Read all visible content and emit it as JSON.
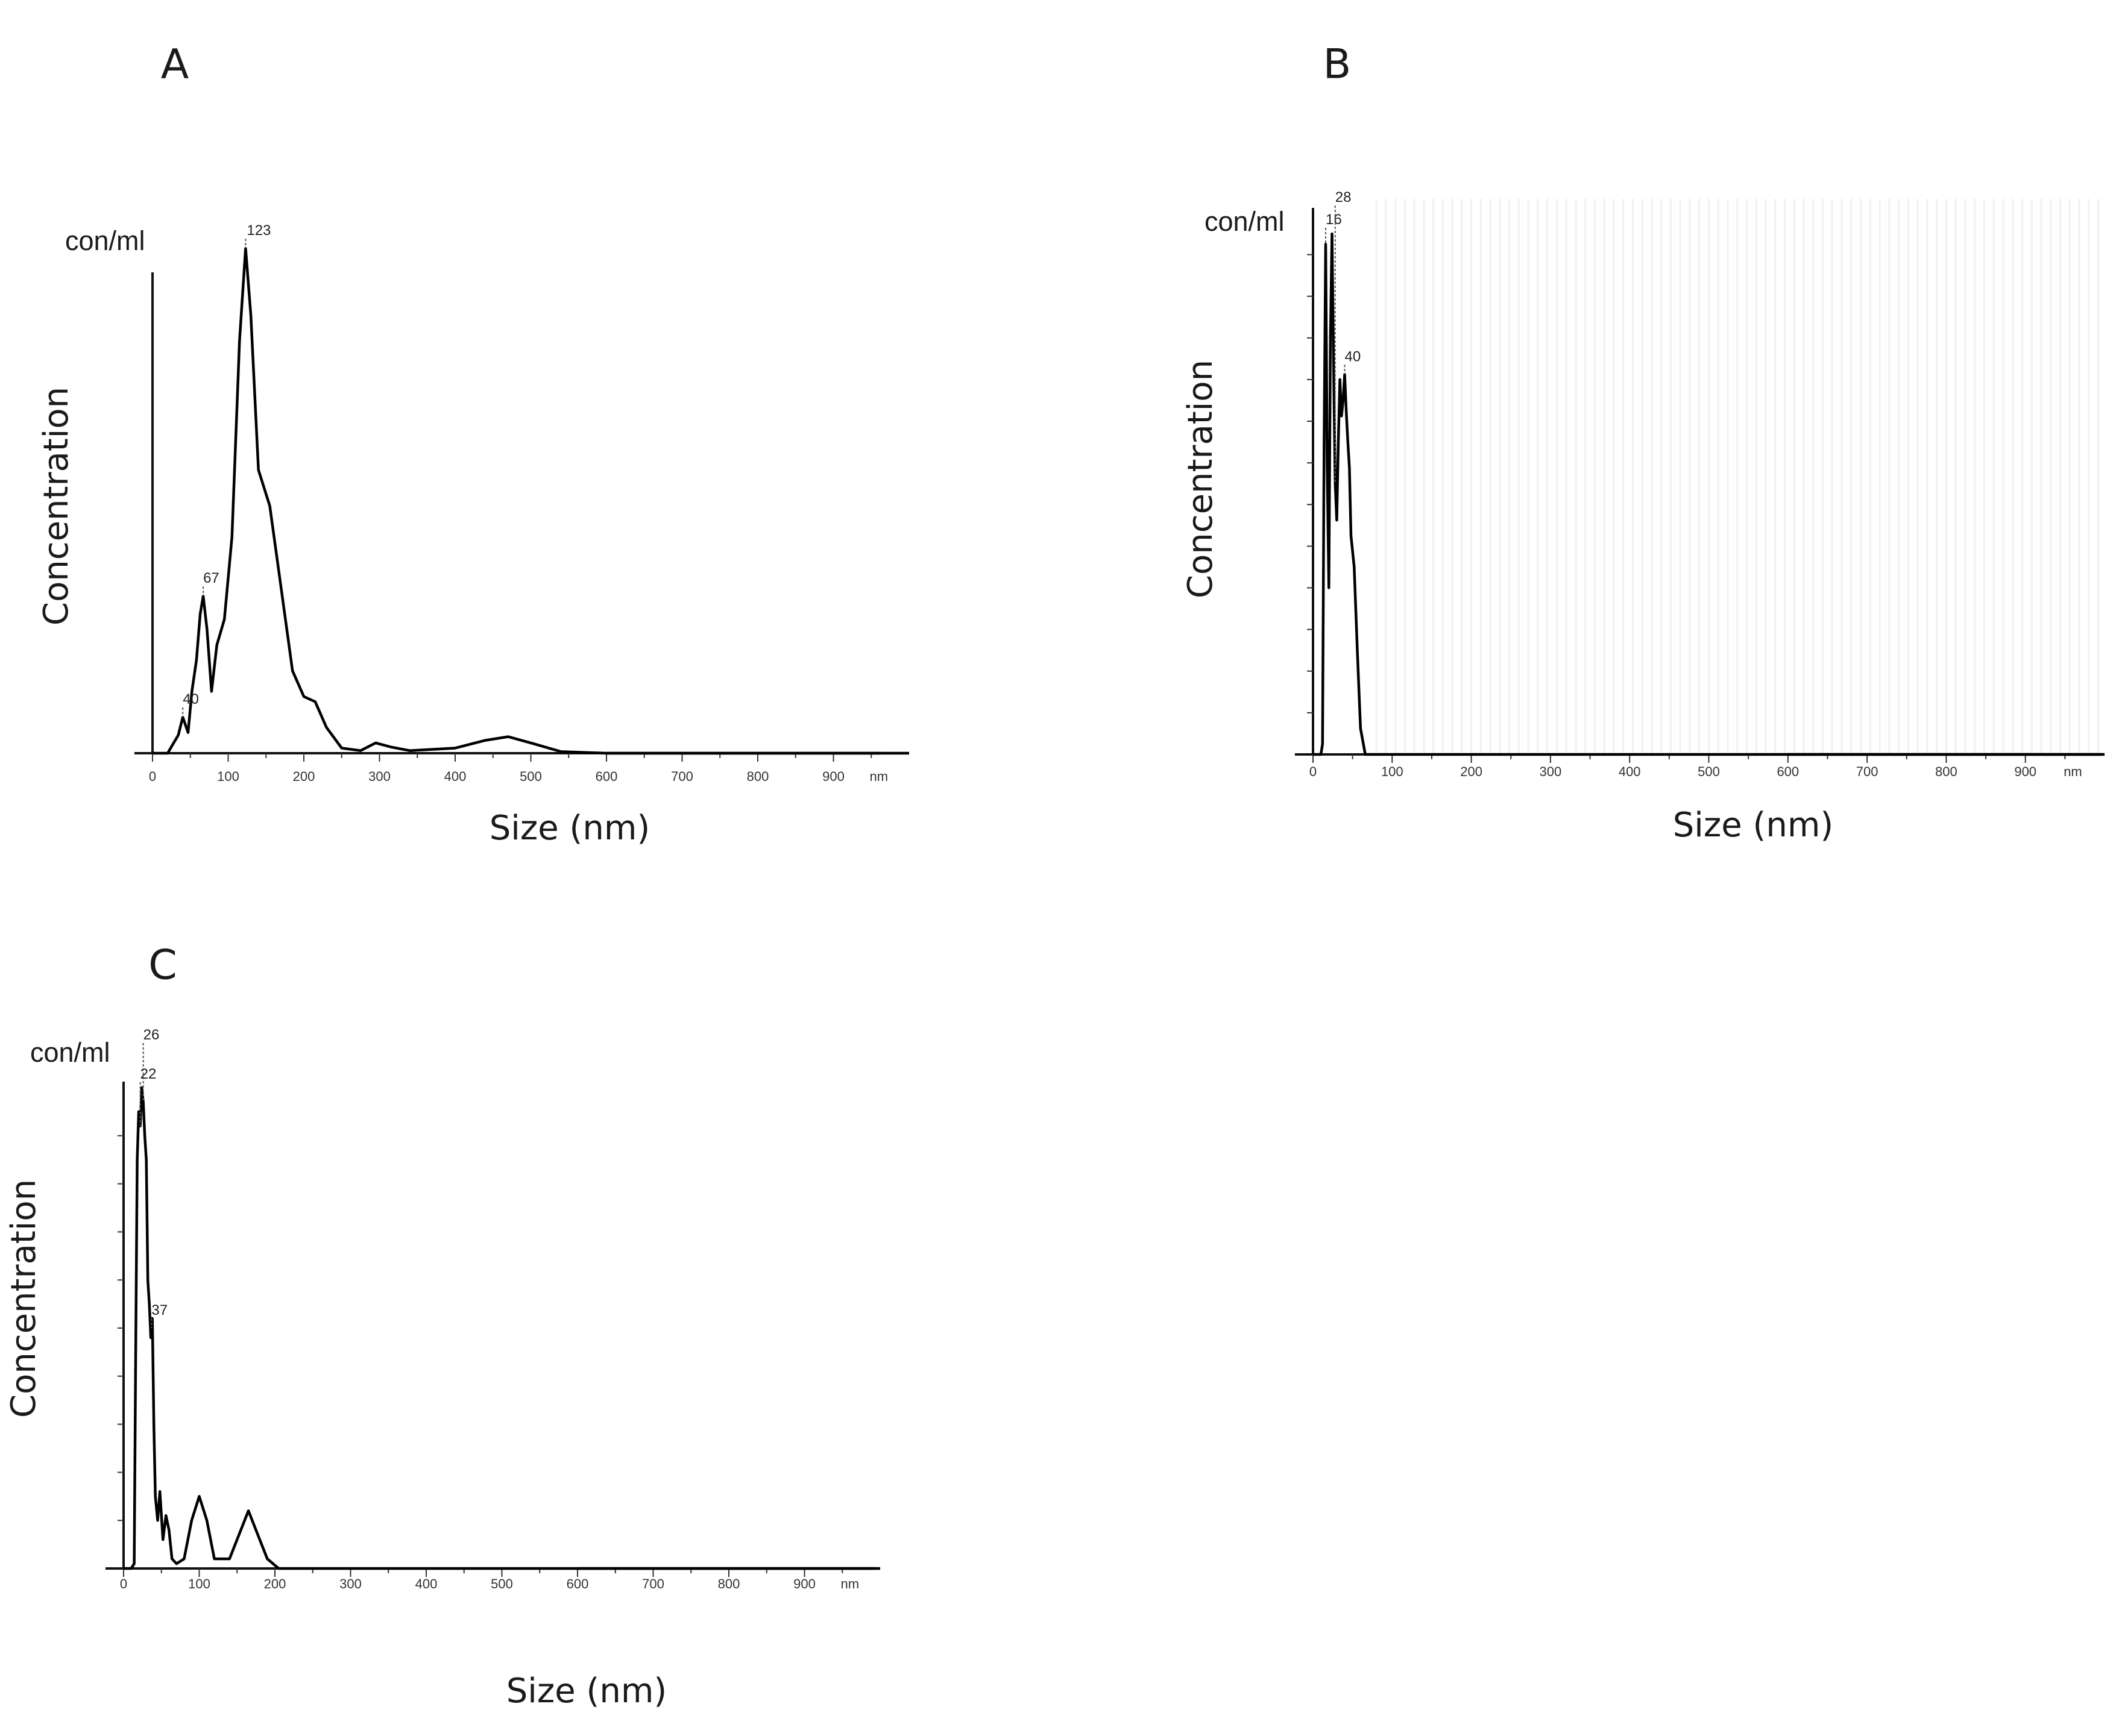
{
  "chart_data": [
    {
      "id": "A",
      "type": "line",
      "panel_label": "A",
      "unit_label": "con/ml",
      "ylabel": "Concentration",
      "xlabel": "Size (nm)",
      "x_unit": "nm",
      "xlim": [
        0,
        1000
      ],
      "ylim": [
        0,
        1
      ],
      "x_ticks": [
        0,
        100,
        200,
        300,
        400,
        500,
        600,
        700,
        800,
        900
      ],
      "y_ticks": [],
      "grid": false,
      "peak_labels": [
        {
          "x": 40,
          "text": "40"
        },
        {
          "x": 67,
          "text": "67"
        },
        {
          "x": 123,
          "text": "123"
        }
      ],
      "series": [
        {
          "x": [
            0,
            20,
            28,
            34,
            40,
            47,
            52,
            58,
            63,
            67,
            72,
            78,
            85,
            95,
            105,
            115,
            123,
            130,
            140,
            155,
            170,
            185,
            200,
            215,
            230,
            250,
            275,
            295,
            315,
            340,
            400,
            440,
            470,
            500,
            540,
            600,
            1000
          ],
          "values": [
            0,
            0,
            0.02,
            0.035,
            0.07,
            0.04,
            0.12,
            0.18,
            0.27,
            0.305,
            0.24,
            0.12,
            0.21,
            0.26,
            0.42,
            0.8,
            0.98,
            0.85,
            0.55,
            0.48,
            0.32,
            0.16,
            0.11,
            0.1,
            0.05,
            0.01,
            0.005,
            0.02,
            0.012,
            0.005,
            0.01,
            0.025,
            0.032,
            0.02,
            0.003,
            0,
            0
          ]
        }
      ]
    },
    {
      "id": "B",
      "type": "line",
      "panel_label": "B",
      "unit_label": "con/ml",
      "ylabel": "Concentration",
      "xlabel": "Size (nm)",
      "x_unit": "nm",
      "xlim": [
        0,
        1000
      ],
      "ylim": [
        0,
        1
      ],
      "x_ticks": [
        0,
        100,
        200,
        300,
        400,
        500,
        600,
        700,
        800,
        900
      ],
      "y_ticks": [
        0.08,
        0.16,
        0.24,
        0.32,
        0.4,
        0.48,
        0.56,
        0.64,
        0.72,
        0.8,
        0.88,
        0.96
      ],
      "grid": true,
      "peak_labels": [
        {
          "x": 16,
          "text": "16"
        },
        {
          "x": 28,
          "text": "28"
        },
        {
          "x": 40,
          "text": "40"
        }
      ],
      "series": [
        {
          "x": [
            0,
            10,
            12,
            14,
            16,
            18,
            20,
            22,
            24,
            26,
            28,
            30,
            32,
            34,
            36,
            38,
            40,
            42,
            44,
            46,
            48,
            52,
            56,
            60,
            66,
            1000
          ],
          "values": [
            0,
            0,
            0.02,
            0.6,
            0.98,
            0.55,
            0.32,
            0.8,
            1.0,
            0.75,
            0.52,
            0.45,
            0.6,
            0.72,
            0.65,
            0.68,
            0.73,
            0.66,
            0.6,
            0.55,
            0.42,
            0.36,
            0.2,
            0.05,
            0,
            0
          ]
        }
      ]
    },
    {
      "id": "C",
      "type": "line",
      "panel_label": "C",
      "unit_label": "con/ml",
      "ylabel": "Concentration",
      "xlabel": "Size (nm)",
      "x_unit": "nm",
      "xlim": [
        0,
        1000
      ],
      "ylim": [
        0,
        1
      ],
      "x_ticks": [
        0,
        100,
        200,
        300,
        400,
        500,
        600,
        700,
        800,
        900
      ],
      "y_ticks": [
        0.1,
        0.2,
        0.3,
        0.4,
        0.5,
        0.6,
        0.7,
        0.8,
        0.9
      ],
      "grid": false,
      "peak_labels": [
        {
          "x": 22,
          "text": "22"
        },
        {
          "x": 26,
          "text": "26"
        },
        {
          "x": 37,
          "text": "37"
        }
      ],
      "series": [
        {
          "x": [
            0,
            10,
            14,
            16,
            18,
            20,
            22,
            24,
            26,
            28,
            30,
            32,
            34,
            36,
            38,
            40,
            42,
            45,
            48,
            52,
            56,
            60,
            64,
            70,
            80,
            90,
            100,
            110,
            120,
            140,
            155,
            165,
            175,
            190,
            205,
            1000
          ],
          "values": [
            0,
            0,
            0.01,
            0.45,
            0.85,
            0.95,
            0.92,
            1.0,
            0.97,
            0.9,
            0.85,
            0.6,
            0.55,
            0.48,
            0.52,
            0.3,
            0.15,
            0.1,
            0.16,
            0.06,
            0.11,
            0.08,
            0.02,
            0.01,
            0.02,
            0.1,
            0.15,
            0.1,
            0.02,
            0.02,
            0.08,
            0.12,
            0.08,
            0.02,
            0,
            0
          ]
        }
      ]
    }
  ]
}
